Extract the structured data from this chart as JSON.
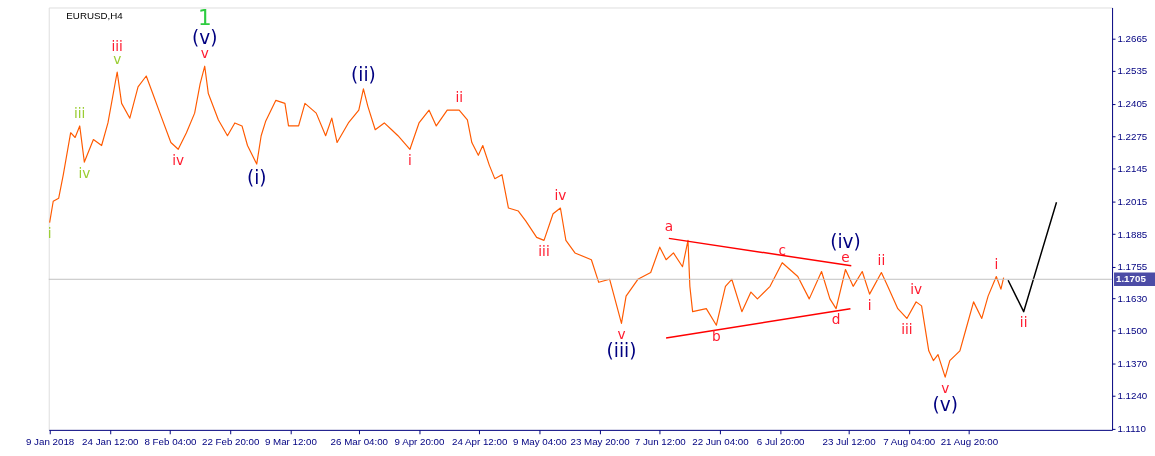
{
  "chart_data": {
    "type": "line",
    "title": "EURUSD,H4",
    "series": [
      {
        "color": "#ff5a00",
        "x": [
          "2018-01-09T20:00",
          "2018-01-10T17:00",
          "2018-01-12T01:00",
          "2018-01-13T04:00",
          "2018-01-14T23:00",
          "2018-01-16T01:00",
          "2018-01-17T04:00",
          "2018-01-18T07:00",
          "2018-01-20T12:00",
          "2018-01-22T12:00",
          "2018-01-24T01:00",
          "2018-01-26T07:00",
          "2018-01-27T09:00",
          "2018-01-29T09:00",
          "2018-01-31T09:00",
          "2018-02-02T09:00",
          "2018-02-03T23:00",
          "2018-02-05T17:00",
          "2018-02-08T09:00",
          "2018-02-10T04:00",
          "2018-02-12T04:00",
          "2018-02-14T04:00",
          "2018-02-15T12:00",
          "2018-02-16T15:00",
          "2018-02-17T12:00",
          "2018-02-19T23:00",
          "2018-02-22T04:00",
          "2018-02-23T23:00",
          "2018-02-25T17:00",
          "2018-02-27T01:00",
          "2018-03-01T07:00",
          "2018-03-02T09:00",
          "2018-03-03T12:00",
          "2018-03-05T23:00",
          "2018-03-08T04:00",
          "2018-03-09T01:00",
          "2018-03-11T12:00",
          "2018-03-13T01:00",
          "2018-03-15T19:00",
          "2018-03-18T02:00",
          "2018-03-19T14:00",
          "2018-03-20T21:00",
          "2018-03-23T15:00",
          "2018-03-26T04:00",
          "2018-03-27T07:00",
          "2018-03-28T09:00",
          "2018-03-30T04:00",
          "2018-04-01T09:00",
          "2018-04-03T04:00",
          "2018-04-04T17:00",
          "2018-04-07T15:00",
          "2018-04-09T20:00",
          "2018-04-12T07:00",
          "2018-04-14T01:00",
          "2018-04-16T17:00",
          "2018-04-19T15:00",
          "2018-04-21T15:00",
          "2018-04-22T17:00",
          "2018-04-24T07:00",
          "2018-04-25T09:00",
          "2018-04-26T23:00",
          "2018-04-28T07:00",
          "2018-04-30T01:00",
          "2018-05-01T15:00",
          "2018-05-04T01:00",
          "2018-05-05T20:00",
          "2018-05-08T12:00",
          "2018-05-10T07:00",
          "2018-05-12T12:00",
          "2018-05-14T07:00",
          "2018-05-15T15:00",
          "2018-05-17T20:00",
          "2018-05-21T20:00",
          "2018-05-23T15:00",
          "2018-05-26T07:00",
          "2018-05-29T04:00",
          "2018-05-30T07:00",
          "2018-06-02T04:00",
          "2018-06-05T07:00",
          "2018-06-07T12:00",
          "2018-06-09T01:00",
          "2018-06-10T20:00",
          "2018-06-13T01:00",
          "2018-06-14T09:00",
          "2018-06-14T20:00",
          "2018-06-15T12:00",
          "2018-06-18T20:00",
          "2018-06-21T07:00",
          "2018-06-23T12:00",
          "2018-06-25T01:00",
          "2018-06-27T12:00",
          "2018-06-29T17:00",
          "2018-07-01T07:00",
          "2018-07-04T09:00",
          "2018-07-07T08:00",
          "2018-07-11T03:00",
          "2018-07-13T22:00",
          "2018-07-16T22:00",
          "2018-07-18T23:00",
          "2018-07-20T11:00",
          "2018-07-22T18:00",
          "2018-07-24T15:00",
          "2018-07-26T20:00",
          "2018-07-28T15:00",
          "2018-07-31T12:00",
          "2018-08-02T01:00",
          "2018-08-04T12:00",
          "2018-08-06T17:00",
          "2018-08-08T23:00",
          "2018-08-10T07:00",
          "2018-08-12T01:00",
          "2018-08-13T04:00",
          "2018-08-14T07:00",
          "2018-08-16T01:00",
          "2018-08-17T04:00",
          "2018-08-19T15:00",
          "2018-08-21T04:00",
          "2018-08-22T23:00",
          "2018-08-24T23:00",
          "2018-08-26T12:00",
          "2018-08-28T12:00",
          "2018-08-29T15:00",
          "2018-08-30T07:00"
        ],
        "values": [
          1.1931,
          1.2016,
          1.2028,
          1.2122,
          1.2289,
          1.227,
          1.2316,
          1.2172,
          1.2262,
          1.2238,
          1.2328,
          1.2531,
          1.2406,
          1.2347,
          1.2472,
          1.2515,
          1.2445,
          1.2367,
          1.225,
          1.2223,
          1.2289,
          1.2367,
          1.2484,
          1.2554,
          1.2445,
          1.234,
          1.2277,
          1.2328,
          1.2316,
          1.2238,
          1.2164,
          1.2277,
          1.2336,
          1.2418,
          1.2406,
          1.2316,
          1.2316,
          1.2406,
          1.2367,
          1.2277,
          1.2347,
          1.225,
          1.2328,
          1.2379,
          1.2464,
          1.2394,
          1.2301,
          1.2328,
          1.2301,
          1.2277,
          1.2223,
          1.2328,
          1.2379,
          1.2316,
          1.2379,
          1.2379,
          1.234,
          1.225,
          1.2199,
          1.2238,
          1.216,
          1.2106,
          1.2122,
          1.1989,
          1.1977,
          1.1938,
          1.1872,
          1.186,
          1.1966,
          1.1989,
          1.186,
          1.181,
          1.1783,
          1.1693,
          1.1705,
          1.1529,
          1.1638,
          1.1705,
          1.1732,
          1.1833,
          1.1783,
          1.181,
          1.1755,
          1.186,
          1.1677,
          1.1576,
          1.1588,
          1.1522,
          1.1677,
          1.1705,
          1.1576,
          1.1654,
          1.1627,
          1.1677,
          1.1771,
          1.1716,
          1.1627,
          1.1736,
          1.1627,
          1.1588,
          1.1744,
          1.1677,
          1.1736,
          1.1646,
          1.1732,
          1.1677,
          1.1588,
          1.1549,
          1.1615,
          1.1599,
          1.142,
          1.1381,
          1.1405,
          1.1315,
          1.1381,
          1.142,
          1.151,
          1.1615,
          1.1549,
          1.1638,
          1.1716,
          1.1666,
          1.1712
        ]
      },
      {
        "color": "#ff0000",
        "x": [
          "2018-06-09T17:00",
          "2018-07-24T04:00"
        ],
        "values": [
          1.1868,
          1.1759
        ]
      },
      {
        "color": "#ff0000",
        "x": [
          "2018-06-09T01:00",
          "2018-07-23T23:00"
        ],
        "values": [
          1.1471,
          1.1588
        ]
      },
      {
        "color": "#000000",
        "x": [
          "2018-08-31T09:00",
          "2018-09-04T04:00",
          "2018-09-12T04:00"
        ],
        "values": [
          1.1701,
          1.1576,
          1.2012
        ]
      }
    ],
    "xlim": [
      "2018-01-09T15:00",
      "2018-09-25T17:00"
    ],
    "xticks": [
      {
        "value": "2018-01-09T20:00",
        "label": "9 Jan 2018"
      },
      {
        "value": "2018-01-24T12:00",
        "label": "24 Jan 12:00"
      },
      {
        "value": "2018-02-08T04:00",
        "label": "8 Feb 04:00"
      },
      {
        "value": "2018-02-22T20:00",
        "label": "22 Feb 20:00"
      },
      {
        "value": "2018-03-09T12:00",
        "label": "9 Mar 12:00"
      },
      {
        "value": "2018-03-26T04:00",
        "label": "26 Mar 04:00"
      },
      {
        "value": "2018-04-09T20:00",
        "label": "9 Apr 20:00"
      },
      {
        "value": "2018-04-24T12:00",
        "label": "24 Apr 12:00"
      },
      {
        "value": "2018-05-09T04:00",
        "label": "9 May 04:00"
      },
      {
        "value": "2018-05-23T20:00",
        "label": "23 May 20:00"
      },
      {
        "value": "2018-06-07T12:00",
        "label": "7 Jun 12:00"
      },
      {
        "value": "2018-06-22T04:00",
        "label": "22 Jun 04:00"
      },
      {
        "value": "2018-07-06T20:00",
        "label": "6 Jul 20:00"
      },
      {
        "value": "2018-07-23T12:00",
        "label": "23 Jul 12:00"
      },
      {
        "value": "2018-08-07T04:00",
        "label": "7 Aug 04:00"
      },
      {
        "value": "2018-08-21T20:00",
        "label": "21 Aug 20:00"
      }
    ],
    "ylim": [
      1.1105,
      1.2788
    ],
    "yticks": [
      {
        "value": 1.111,
        "label": "1.1110"
      },
      {
        "value": 1.124,
        "label": "1.1240"
      },
      {
        "value": 1.137,
        "label": "1.1370"
      },
      {
        "value": 1.15,
        "label": "1.1500"
      },
      {
        "value": 1.163,
        "label": "1.1630"
      },
      1.1755,
      1.1885,
      1.2015,
      1.2145,
      1.2275,
      1.2405,
      1.2535,
      1.2665
    ],
    "ref_lines": [
      {
        "axis": "y",
        "value": 1.1705,
        "label": "1.1705",
        "color": "#c0c0c0"
      }
    ],
    "annotations": [
      {
        "text": "iii",
        "x": "2018-01-17T04:00",
        "y": 1.2316
      },
      {
        "text": "v",
        "x": "2018-01-26T07:00",
        "y": 1.2531
      },
      {
        "text": "iv",
        "x": "2018-01-18T07:00",
        "y": 1.2172
      },
      {
        "text": "i",
        "x": "2018-01-09T20:00",
        "y": 1.1931
      },
      {
        "text": "iii",
        "x": "2018-01-26T07:00",
        "y": 1.2531
      },
      {
        "text": "v",
        "x": "2018-02-16T15:00",
        "y": 1.2554
      },
      {
        "text": "iv",
        "x": "2018-02-10T04:00",
        "y": 1.2223
      },
      {
        "text": "ii",
        "x": "2018-04-19T15:00",
        "y": 1.2379
      },
      {
        "text": "i",
        "x": "2018-04-07T15:00",
        "y": 1.2223
      },
      {
        "text": "iv",
        "x": "2018-05-14T07:00",
        "y": 1.1989
      },
      {
        "text": "iii",
        "x": "2018-05-10T07:00",
        "y": 1.186
      },
      {
        "text": "v",
        "x": "2018-05-29T04:00",
        "y": 1.1529
      },
      {
        "text": "a",
        "x": "2018-06-09T17:00",
        "y": 1.1868
      },
      {
        "text": "b",
        "x": "2018-06-21T07:00",
        "y": 1.1522
      },
      {
        "text": "c",
        "x": "2018-07-07T08:00",
        "y": 1.1771
      },
      {
        "text": "d",
        "x": "2018-07-20T11:00",
        "y": 1.1588
      },
      {
        "text": "e",
        "x": "2018-07-22T18:00",
        "y": 1.1744
      },
      {
        "text": "i",
        "x": "2018-07-28T15:00",
        "y": 1.1646
      },
      {
        "text": "ii",
        "x": "2018-07-31T12:00",
        "y": 1.1732
      },
      {
        "text": "iv",
        "x": "2018-08-08T23:00",
        "y": 1.1615
      },
      {
        "text": "iii",
        "x": "2018-08-06T17:00",
        "y": 1.1549
      },
      {
        "text": "v",
        "x": "2018-08-16T01:00",
        "y": 1.1315
      },
      {
        "text": "i",
        "x": "2018-08-28T12:00",
        "y": 1.1716
      },
      {
        "text": "ii",
        "x": "2018-09-04T04:00",
        "y": 1.1576
      },
      {
        "text": "(v)",
        "x": "2018-02-16T15:00",
        "y": 1.2554
      },
      {
        "text": "(i)",
        "x": "2018-03-01T07:00",
        "y": 1.2164
      },
      {
        "text": "(ii)",
        "x": "2018-03-27T07:00",
        "y": 1.2464
      },
      {
        "text": "(iii)",
        "x": "2018-05-29T04:00",
        "y": 1.1529
      },
      {
        "text": "(iv)",
        "x": "2018-07-22T18:00",
        "y": 1.1744
      },
      {
        "text": "(v)",
        "x": "2018-08-16T01:00",
        "y": 1.1315
      },
      {
        "text": "1",
        "x": "2018-02-16T15:00",
        "y": 1.2554
      }
    ],
    "grid": false,
    "marker": "none",
    "line_style": "solid"
  }
}
